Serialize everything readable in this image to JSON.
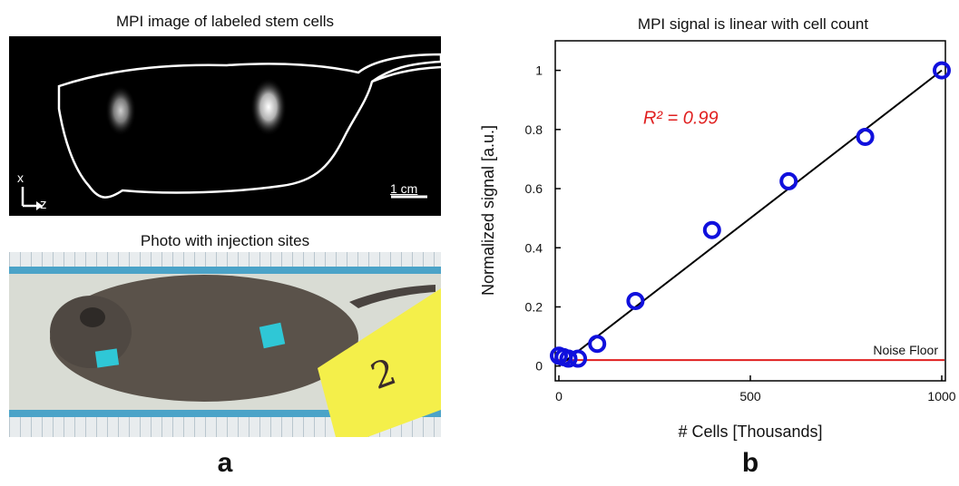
{
  "panel_a": {
    "mpi_title": "MPI image of labeled stem cells",
    "axis_x": "x",
    "axis_z": "z",
    "scale_bar_label": "1 cm",
    "photo_title": "Photo with injection sites",
    "tag_text": "2",
    "label": "a"
  },
  "panel_b": {
    "label": "b"
  },
  "chart_data": {
    "type": "scatter",
    "title": "MPI signal is linear with cell count",
    "xlabel": "# Cells [Thousands]",
    "ylabel": "Normalized signal [a.u.]",
    "xlim": [
      0,
      1000
    ],
    "ylim": [
      -0.05,
      1.1
    ],
    "x_ticks": [
      0,
      500,
      1000
    ],
    "y_ticks": [
      0,
      0.2,
      0.4,
      0.6,
      0.8,
      1
    ],
    "y_tick_labels": [
      "0",
      "0.2",
      "0.4",
      "0.6",
      "0.8",
      "1"
    ],
    "series": [
      {
        "marker": "open-circle",
        "color": "#1010dd",
        "x": [
          0,
          12.5,
          25,
          50,
          100,
          200,
          400,
          600,
          800,
          1000
        ],
        "y": [
          0.035,
          0.03,
          0.025,
          0.025,
          0.075,
          0.22,
          0.46,
          0.625,
          0.775,
          1.0
        ]
      }
    ],
    "fit_line": {
      "color": "#000000",
      "x": [
        0,
        1000
      ],
      "y": [
        0.0,
        1.0
      ]
    },
    "noise_floor": {
      "y": 0.02,
      "label": "Noise Floor",
      "color": "#e02020"
    },
    "annotation": {
      "text": "R² = 0.99",
      "color": "#e02020"
    }
  }
}
